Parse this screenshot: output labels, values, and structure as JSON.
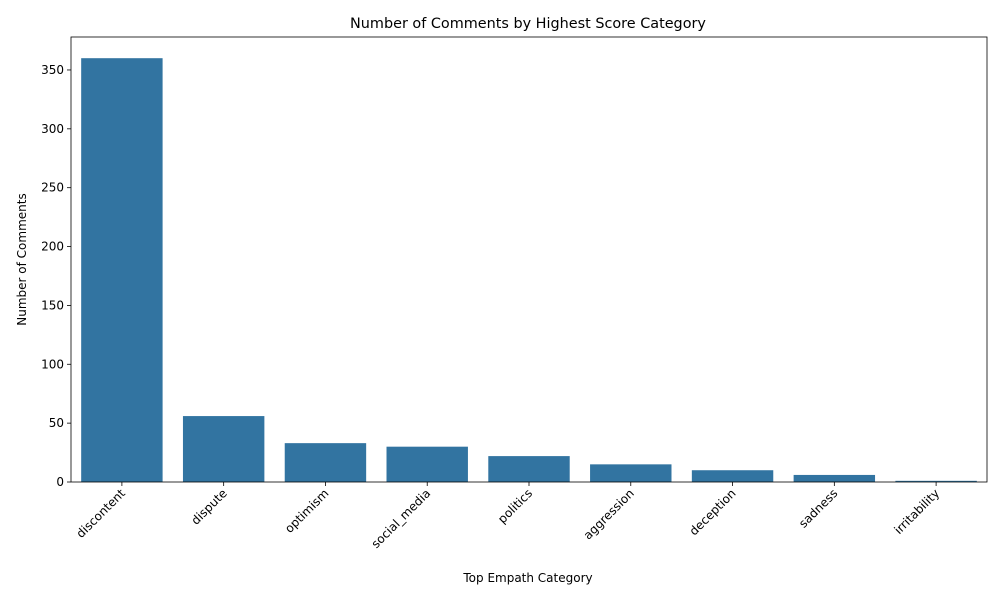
{
  "chart_data": {
    "type": "bar",
    "title": "Number of Comments by Highest Score Category",
    "xlabel": "Top Empath Category",
    "ylabel": "Number of Comments",
    "categories": [
      "discontent",
      "dispute",
      "optimism",
      "social_media",
      "politics",
      "aggression",
      "deception",
      "sadness",
      "irritability"
    ],
    "values": [
      360,
      56,
      33,
      30,
      22,
      15,
      10,
      6,
      1
    ],
    "ylim": [
      0,
      378
    ],
    "yticks": [
      0,
      50,
      100,
      150,
      200,
      250,
      300,
      350
    ],
    "ytick_labels": [
      "0",
      "50",
      "100",
      "150",
      "200",
      "250",
      "300",
      "350"
    ],
    "grid": false,
    "bar_color": "#3274a1"
  }
}
